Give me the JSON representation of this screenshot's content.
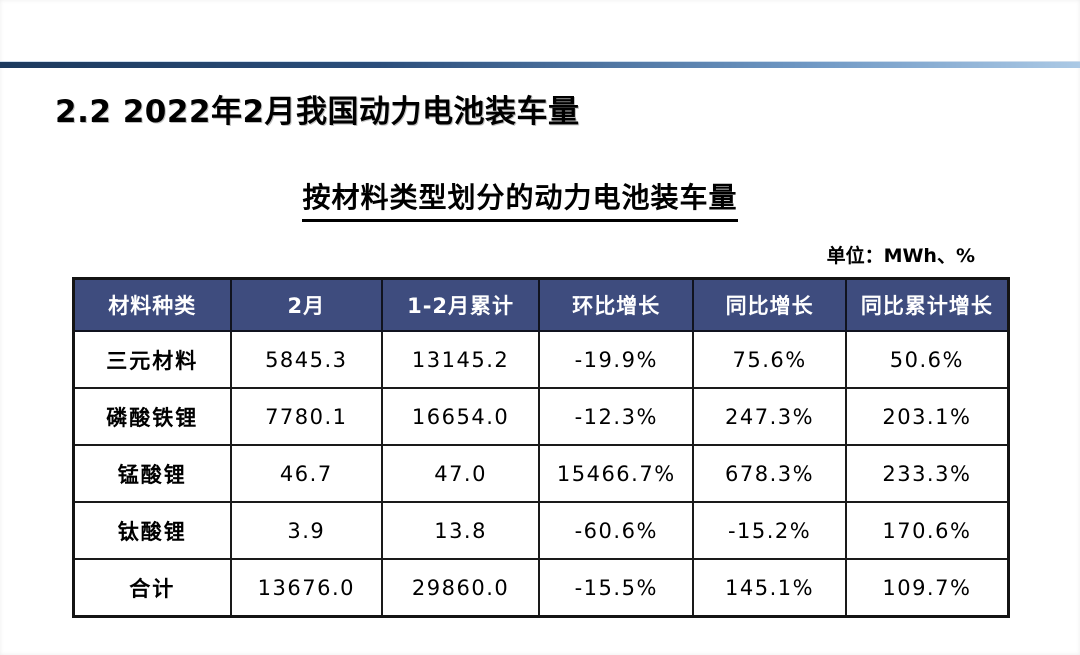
{
  "slide": {
    "section_title": "2.2 2022年2月我国动力电池装车量",
    "table_title": "按材料类型划分的动力电池装车量",
    "unit_label": "单位：MWh、%"
  },
  "colors": {
    "header_bg": "#3e4c7e",
    "header_text": "#ffffff",
    "accent_line_left": "#1c3a5e",
    "accent_line_right": "#abc9e5",
    "table_border": "#141414"
  },
  "chart_data": {
    "type": "table",
    "title": "按材料类型划分的动力电池装车量",
    "unit": "MWh、%",
    "columns": [
      "材料种类",
      "2月",
      "1-2月累计",
      "环比增长",
      "同比增长",
      "同比累计增长"
    ],
    "rows": [
      [
        "三元材料",
        "5845.3",
        "13145.2",
        "-19.9%",
        "75.6%",
        "50.6%"
      ],
      [
        "磷酸铁锂",
        "7780.1",
        "16654.0",
        "-12.3%",
        "247.3%",
        "203.1%"
      ],
      [
        "锰酸锂",
        "46.7",
        "47.0",
        "15466.7%",
        "678.3%",
        "233.3%"
      ],
      [
        "钛酸锂",
        "3.9",
        "13.8",
        "-60.6%",
        "-15.2%",
        "170.6%"
      ],
      [
        "合计",
        "13676.0",
        "29860.0",
        "-15.5%",
        "145.1%",
        "109.7%"
      ]
    ],
    "column_widths_pct": [
      16.8,
      16.2,
      16.8,
      16.5,
      16.3,
      17.4
    ]
  }
}
